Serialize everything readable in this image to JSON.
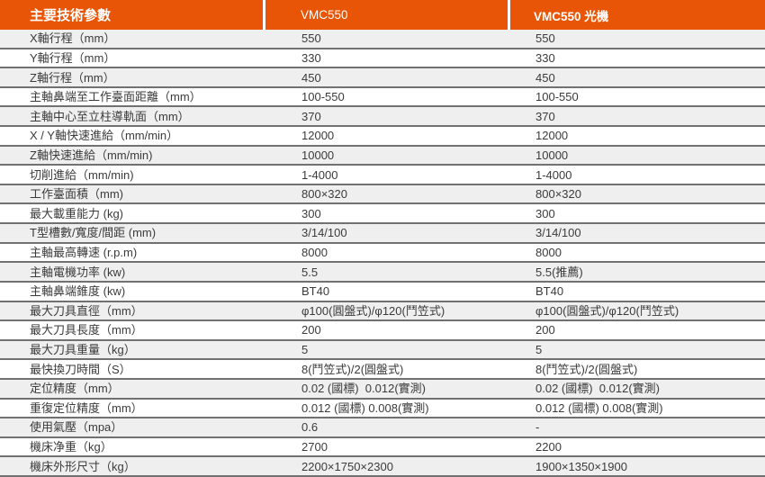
{
  "table": {
    "header": [
      "主要技術參數",
      "VMC550",
      "VMC550 光機"
    ],
    "rows": [
      [
        "X軸行程（mm）",
        "550",
        "550"
      ],
      [
        "Y軸行程（mm）",
        "330",
        "330"
      ],
      [
        "Z軸行程（mm）",
        "450",
        "450"
      ],
      [
        "主軸鼻端至工作臺面距離（mm）",
        "100-550",
        "100-550"
      ],
      [
        "主軸中心至立柱導軌面（mm）",
        "370",
        "370"
      ],
      [
        "X / Y軸快速進給（mm/min）",
        "12000",
        "12000"
      ],
      [
        "Z軸快速進給（mm/min)",
        "10000",
        "10000"
      ],
      [
        "切削進給（mm/min)",
        "1-4000",
        "1-4000"
      ],
      [
        "工作臺面積（mm)",
        "800×320",
        "800×320"
      ],
      [
        "最大載重能力 (kg)",
        "300",
        "300"
      ],
      [
        "T型槽數/寬度/間距 (mm)",
        "3/14/100",
        "3/14/100"
      ],
      [
        "主軸最高轉速 (r.p.m)",
        "8000",
        "8000"
      ],
      [
        "主軸電機功率 (kw)",
        "5.5",
        "5.5(推薦)"
      ],
      [
        "主軸鼻端錐度 (kw)",
        "BT40",
        "BT40"
      ],
      [
        "最大刀具直徑（mm）",
        "φ100(圓盤式)/φ120(鬥笠式)",
        "φ100(圓盤式)/φ120(鬥笠式)"
      ],
      [
        "最大刀具長度（mm）",
        "200",
        "200"
      ],
      [
        "最大刀具重量（kg）",
        "5",
        "5"
      ],
      [
        "最快換刀時間（S）",
        "8(鬥笠式)/2(圓盤式)",
        "8(鬥笠式)/2(圓盤式)"
      ],
      [
        "定位精度（mm）",
        "0.02 (國標)  0.012(實測)",
        "0.02 (國標)  0.012(實測)"
      ],
      [
        "重復定位精度（mm）",
        "0.012 (國標) 0.008(實測)",
        "0.012 (國標) 0.008(實測)"
      ],
      [
        "使用氣壓（mpa）",
        "0.6",
        "-"
      ],
      [
        "機床净重（kg）",
        "2700",
        "2200"
      ],
      [
        "機床外形尺寸（kg）",
        "2200×1750×2300",
        "1900×1350×1900"
      ]
    ]
  },
  "colors": {
    "header_bg": "#E85506",
    "header_text": "#FFFFFF",
    "row_stripe_bg": "#EFEFEF",
    "row_bg": "#FFFFFF",
    "row_border": "#717171",
    "body_text": "#3B3B3B"
  }
}
